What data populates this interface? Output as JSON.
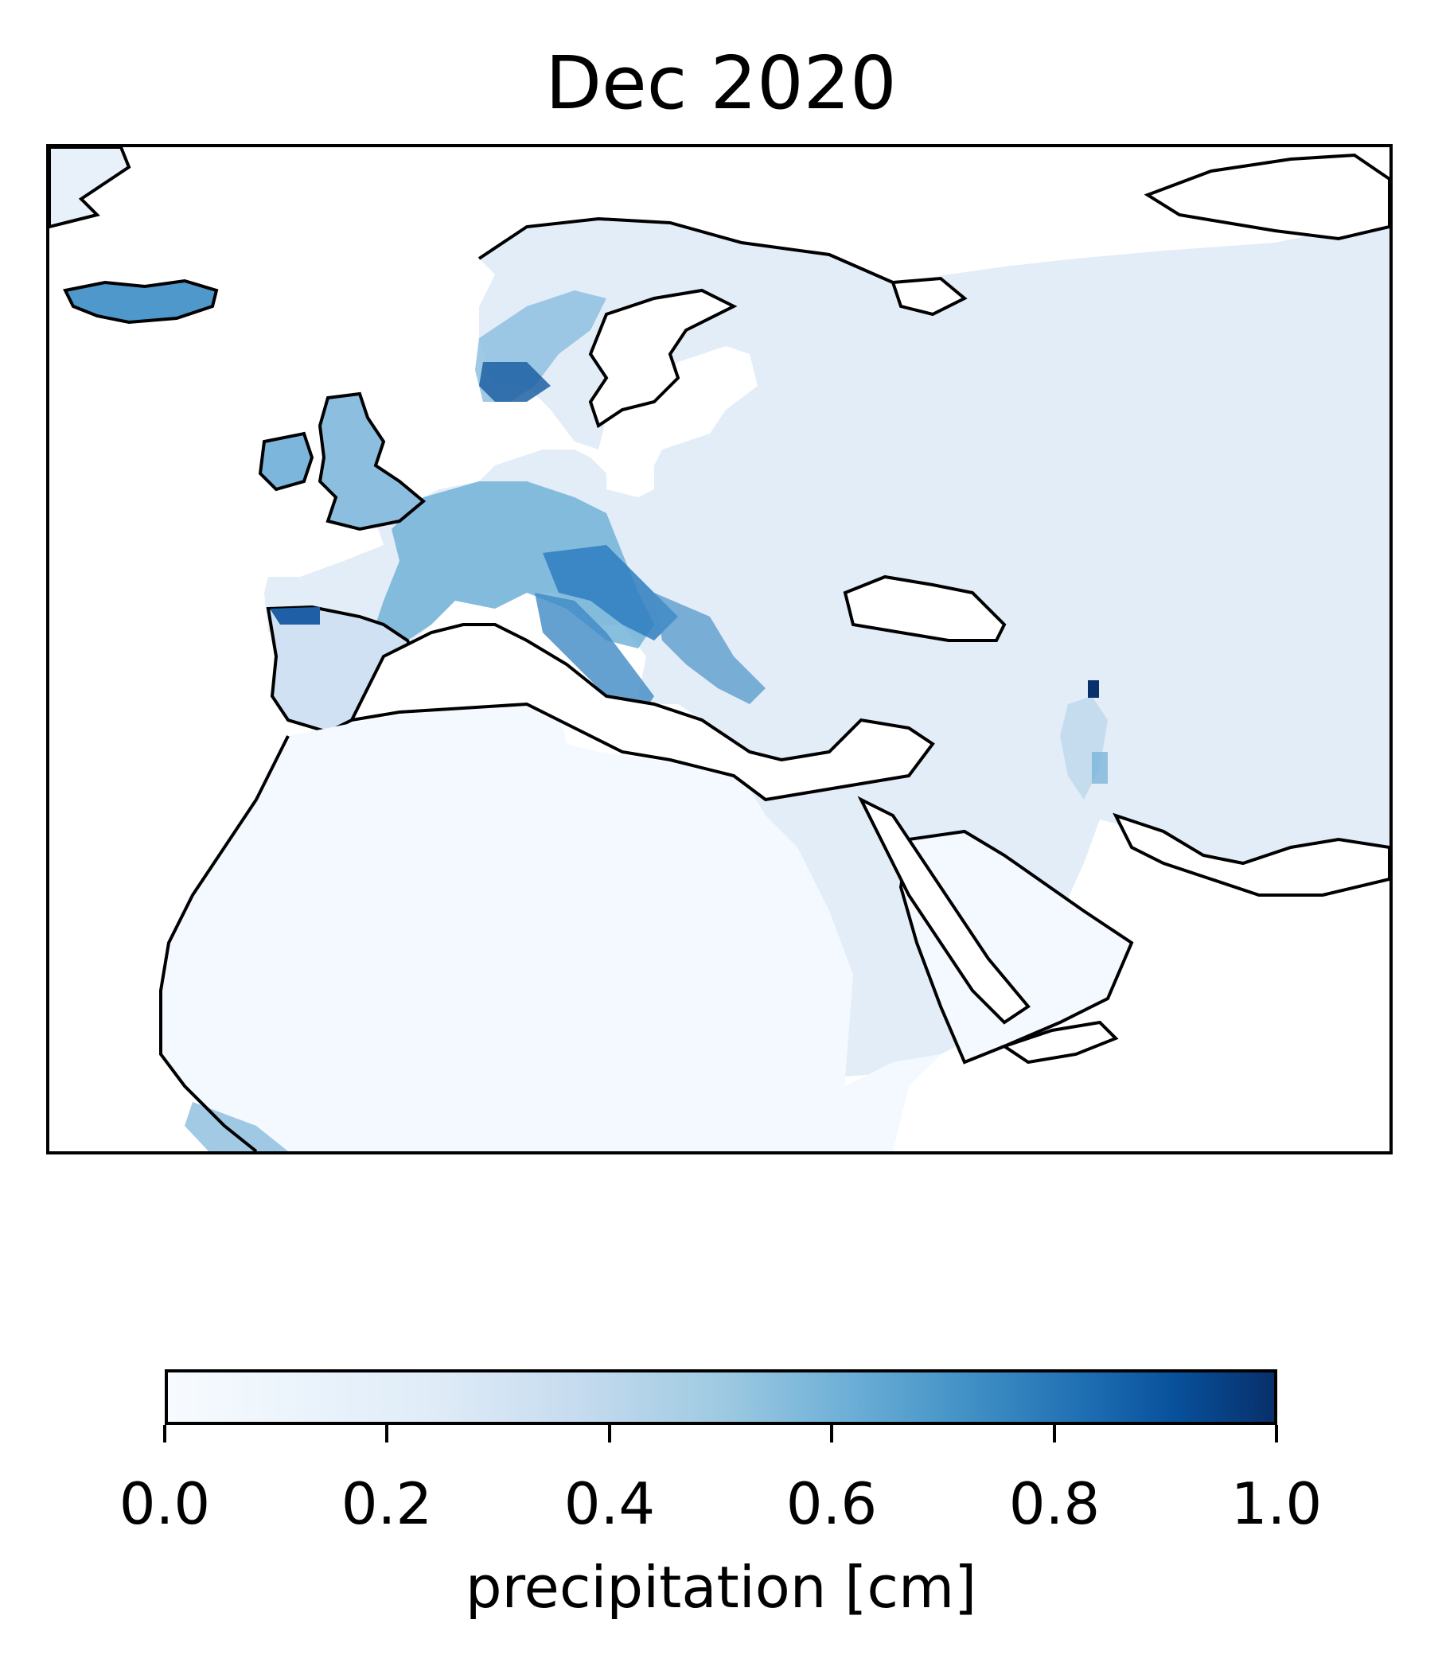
{
  "chart_data": {
    "type": "heatmap",
    "title": "Dec 2020",
    "variable": "precipitation",
    "colormap": "Blues",
    "colorbar": {
      "label": "precipitation [cm]",
      "range": [
        0.0,
        1.0
      ],
      "ticks": [
        "0.0",
        "0.2",
        "0.4",
        "0.6",
        "0.8",
        "1.0"
      ],
      "orientation": "horizontal"
    }
  }
}
